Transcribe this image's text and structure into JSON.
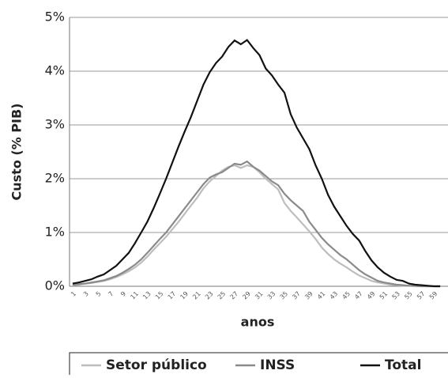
{
  "chart_data": {
    "type": "line",
    "y_label": "Custo (% PIB)",
    "x_label": "anos",
    "categories": [
      "1",
      null,
      "3",
      null,
      "5",
      null,
      "7",
      null,
      "9",
      null,
      "11",
      null,
      "13",
      null,
      "15",
      null,
      "17",
      null,
      "19",
      null,
      "21",
      null,
      "23",
      null,
      "25",
      null,
      "27",
      null,
      "29",
      null,
      "31",
      null,
      "33",
      null,
      "35",
      null,
      "37",
      null,
      "39",
      null,
      "41",
      null,
      "43",
      null,
      "45",
      null,
      "47",
      null,
      "49",
      null,
      "51",
      null,
      "53",
      null,
      "55",
      null,
      "57",
      null,
      "59",
      null
    ],
    "series": [
      {
        "name": "Setor público",
        "color": "#bdbdbd",
        "values": [
          0.02,
          0.03,
          0.05,
          0.06,
          0.08,
          0.1,
          0.13,
          0.17,
          0.22,
          0.28,
          0.35,
          0.44,
          0.55,
          0.68,
          0.8,
          0.92,
          1.06,
          1.2,
          1.35,
          1.5,
          1.65,
          1.82,
          1.95,
          2.05,
          2.15,
          2.22,
          2.25,
          2.2,
          2.25,
          2.22,
          2.12,
          2.0,
          1.9,
          1.8,
          1.55,
          1.4,
          1.28,
          1.15,
          1.02,
          0.88,
          0.72,
          0.6,
          0.5,
          0.42,
          0.35,
          0.27,
          0.2,
          0.15,
          0.1,
          0.07,
          0.05,
          0.03,
          0.02,
          0.01,
          0.01,
          0,
          0,
          0,
          0,
          0
        ]
      },
      {
        "name": "INSS",
        "color": "#8a8a8a",
        "values": [
          0.03,
          0.04,
          0.05,
          0.07,
          0.09,
          0.11,
          0.15,
          0.19,
          0.25,
          0.32,
          0.4,
          0.5,
          0.62,
          0.75,
          0.88,
          1.0,
          1.15,
          1.3,
          1.45,
          1.6,
          1.75,
          1.9,
          2.02,
          2.08,
          2.12,
          2.2,
          2.28,
          2.26,
          2.32,
          2.22,
          2.15,
          2.05,
          1.95,
          1.88,
          1.72,
          1.6,
          1.5,
          1.4,
          1.2,
          1.05,
          0.9,
          0.78,
          0.68,
          0.58,
          0.5,
          0.4,
          0.3,
          0.22,
          0.16,
          0.1,
          0.07,
          0.05,
          0.03,
          0.02,
          0.01,
          0.01,
          0,
          0,
          0,
          0
        ]
      },
      {
        "name": "Total",
        "color": "#111111",
        "values": [
          0.05,
          0.07,
          0.1,
          0.13,
          0.18,
          0.22,
          0.3,
          0.38,
          0.5,
          0.62,
          0.8,
          1.0,
          1.2,
          1.45,
          1.72,
          2.0,
          2.3,
          2.6,
          2.88,
          3.15,
          3.45,
          3.75,
          3.98,
          4.15,
          4.27,
          4.45,
          4.57,
          4.5,
          4.58,
          4.43,
          4.3,
          4.05,
          3.92,
          3.75,
          3.6,
          3.2,
          2.95,
          2.75,
          2.55,
          2.25,
          2.0,
          1.7,
          1.48,
          1.3,
          1.12,
          0.97,
          0.85,
          0.65,
          0.48,
          0.35,
          0.25,
          0.18,
          0.12,
          0.1,
          0.05,
          0.03,
          0.02,
          0.01,
          0,
          0
        ]
      }
    ],
    "ylim": [
      0,
      5
    ],
    "yticks": [
      {
        "value": 0,
        "label": "0%"
      },
      {
        "value": 1,
        "label": "1%"
      },
      {
        "value": 2,
        "label": "2%"
      },
      {
        "value": 3,
        "label": "3%"
      },
      {
        "value": 4,
        "label": "4%"
      },
      {
        "value": 5,
        "label": "5%"
      }
    ],
    "grid": true,
    "legend": "bottom"
  }
}
